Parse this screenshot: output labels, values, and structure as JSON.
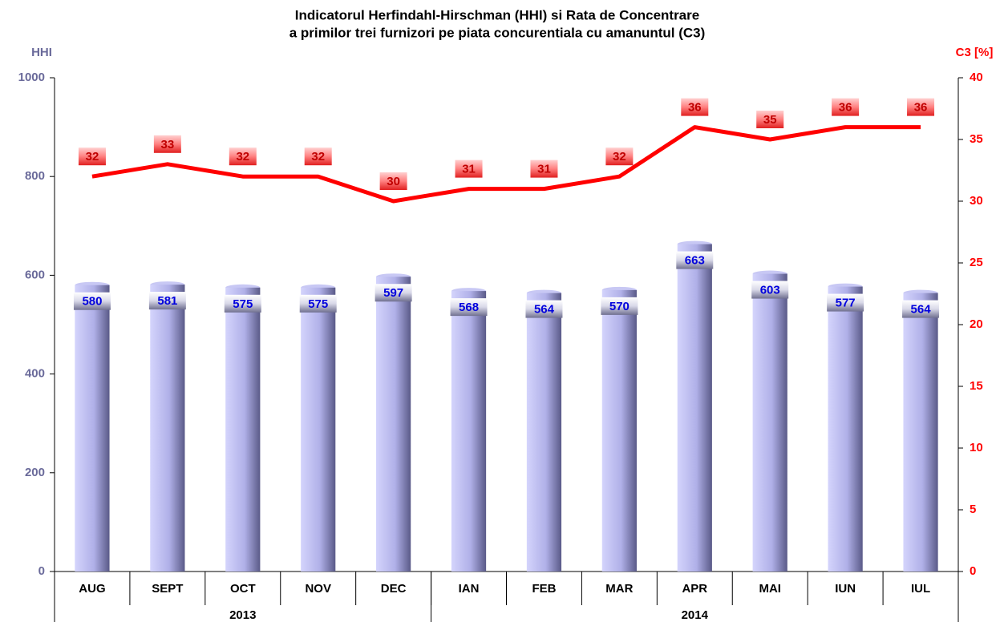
{
  "chart_data": {
    "type": "bar",
    "title": [
      "Indicatorul Herfindahl-Hirschman (HHI) si Rata de Concentrare",
      "a primilor trei furnizori pe piata concurentiala cu amanuntul (C3)"
    ],
    "ylabel": "HHI",
    "y2label": "C3 [%]",
    "categories": [
      "AUG",
      "SEPT",
      "OCT",
      "NOV",
      "DEC",
      "IAN",
      "FEB",
      "MAR",
      "APR",
      "MAI",
      "IUN",
      "IUL"
    ],
    "groups": [
      {
        "label": "2013",
        "span": 5
      },
      {
        "label": "2014",
        "span": 7
      }
    ],
    "series": [
      {
        "type": "bar",
        "color": "#b4b4ee",
        "values": [
          580,
          581,
          575,
          575,
          597,
          568,
          564,
          570,
          663,
          603,
          577,
          564
        ]
      },
      {
        "type": "line",
        "axis": "y2",
        "color": "#ff0000",
        "values": [
          32,
          33,
          32,
          32,
          30,
          31,
          31,
          32,
          36,
          35,
          36,
          36
        ]
      }
    ],
    "ylim": [
      0,
      1000
    ],
    "yticks": [
      0,
      200,
      400,
      600,
      800,
      1000
    ],
    "y2lim": [
      0,
      40
    ],
    "y2ticks": [
      0,
      5,
      10,
      15,
      20,
      25,
      30,
      35,
      40
    ]
  }
}
